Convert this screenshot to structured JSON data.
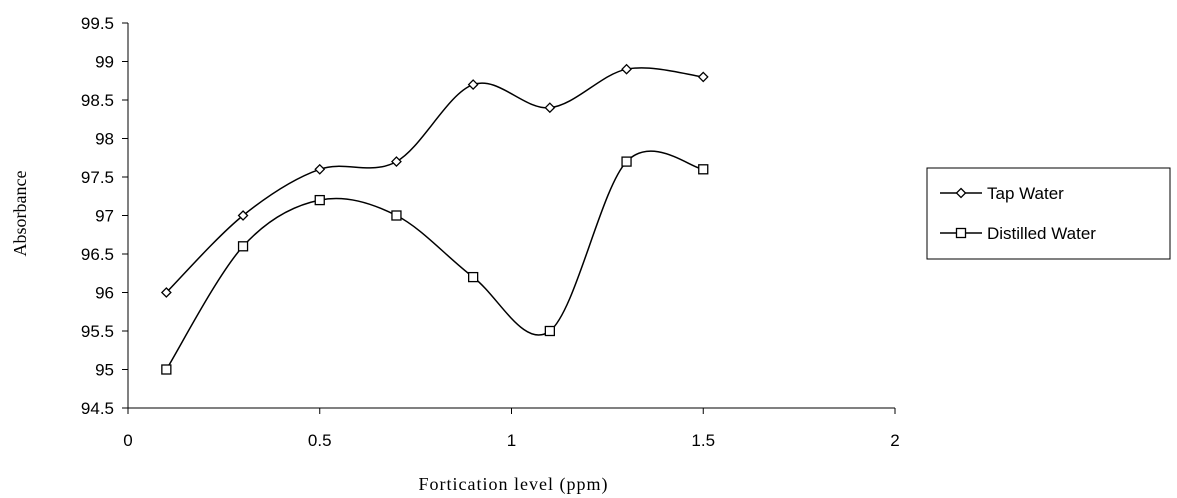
{
  "chart_data": {
    "type": "scatter",
    "title": "",
    "xlabel": "Fortication level (ppm)",
    "ylabel": "Absorbance",
    "xlim": [
      0,
      2
    ],
    "ylim": [
      94.5,
      99.5
    ],
    "x_ticks": [
      "0",
      "0.5",
      "1",
      "1.5",
      "2"
    ],
    "y_ticks": [
      "94.5",
      "95",
      "95.5",
      "96",
      "96.5",
      "97",
      "97.5",
      "98",
      "98.5",
      "99",
      "99.5"
    ],
    "grid": false,
    "smoothed_lines": true,
    "legend_position": "right",
    "series": [
      {
        "name": "Tap Water",
        "marker": "diamond",
        "color": "#000000",
        "x": [
          0.1,
          0.3,
          0.5,
          0.7,
          0.9,
          1.1,
          1.3,
          1.5
        ],
        "y": [
          96.0,
          97.0,
          97.6,
          97.7,
          98.7,
          98.4,
          98.9,
          98.8
        ]
      },
      {
        "name": "Distilled Water",
        "marker": "square",
        "color": "#000000",
        "x": [
          0.1,
          0.3,
          0.5,
          0.7,
          0.9,
          1.1,
          1.3,
          1.5
        ],
        "y": [
          95.0,
          96.6,
          97.2,
          97.0,
          96.2,
          95.5,
          97.7,
          97.6
        ]
      }
    ]
  }
}
